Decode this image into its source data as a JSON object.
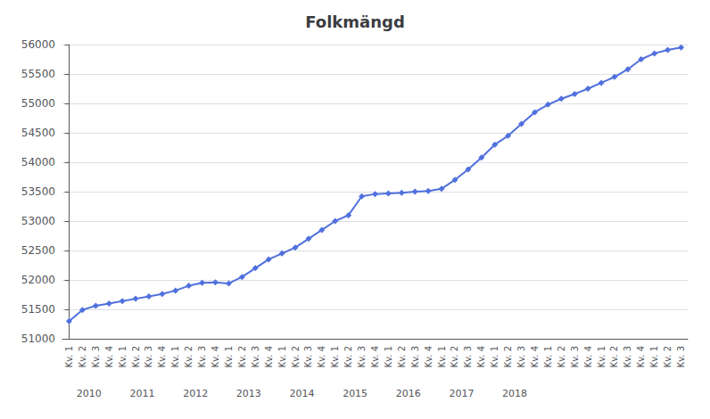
{
  "chart_data": {
    "type": "line",
    "title": "Folkmängd",
    "categories": [
      "Kv. 1",
      "Kv. 2",
      "Kv. 3",
      "Kv. 4",
      "Kv. 1",
      "Kv. 2",
      "Kv. 3",
      "Kv. 4",
      "Kv. 1",
      "Kv. 2",
      "Kv. 3",
      "Kv. 4",
      "Kv. 1",
      "Kv. 2",
      "Kv. 3",
      "Kv. 4",
      "Kv. 1",
      "Kv. 2",
      "Kv. 3",
      "Kv. 4",
      "Kv. 1",
      "Kv. 2",
      "Kv. 3",
      "Kv. 4",
      "Kv. 1",
      "Kv. 2",
      "Kv. 3",
      "Kv. 4",
      "Kv. 1",
      "Kv. 2",
      "Kv. 3",
      "Kv. 4",
      "Kv. 1",
      "Kv. 2",
      "Kv. 3",
      "Kv. 4",
      "Kv. 1",
      "Kv. 2",
      "Kv. 3",
      "Kv. 4",
      "Kv. 1",
      "Kv. 2",
      "Kv. 3",
      "Kv. 4",
      "Kv. 1",
      "Kv. 2",
      "Kv. 3"
    ],
    "values": [
      51300,
      51490,
      51560,
      51600,
      51640,
      51680,
      51720,
      51760,
      51820,
      51900,
      51950,
      51960,
      51940,
      52050,
      52200,
      52350,
      52450,
      52550,
      52700,
      52850,
      53000,
      53100,
      53420,
      53460,
      53470,
      53480,
      53500,
      53510,
      53550,
      53700,
      53880,
      54080,
      54300,
      54450,
      54650,
      54850,
      54980,
      55080,
      55160,
      55250,
      55350,
      55450,
      55580,
      55750,
      55850,
      55910,
      55950
    ],
    "ylim": [
      51000,
      56000
    ],
    "yticks": [
      51000,
      51500,
      52000,
      52500,
      53000,
      53500,
      54000,
      54500,
      55000,
      55500,
      56000
    ],
    "grid": true,
    "marker": "diamond",
    "annotations": [
      "2010",
      "2011",
      "2012",
      "2013",
      "2014",
      "2015",
      "2016",
      "2017",
      "2018"
    ]
  }
}
